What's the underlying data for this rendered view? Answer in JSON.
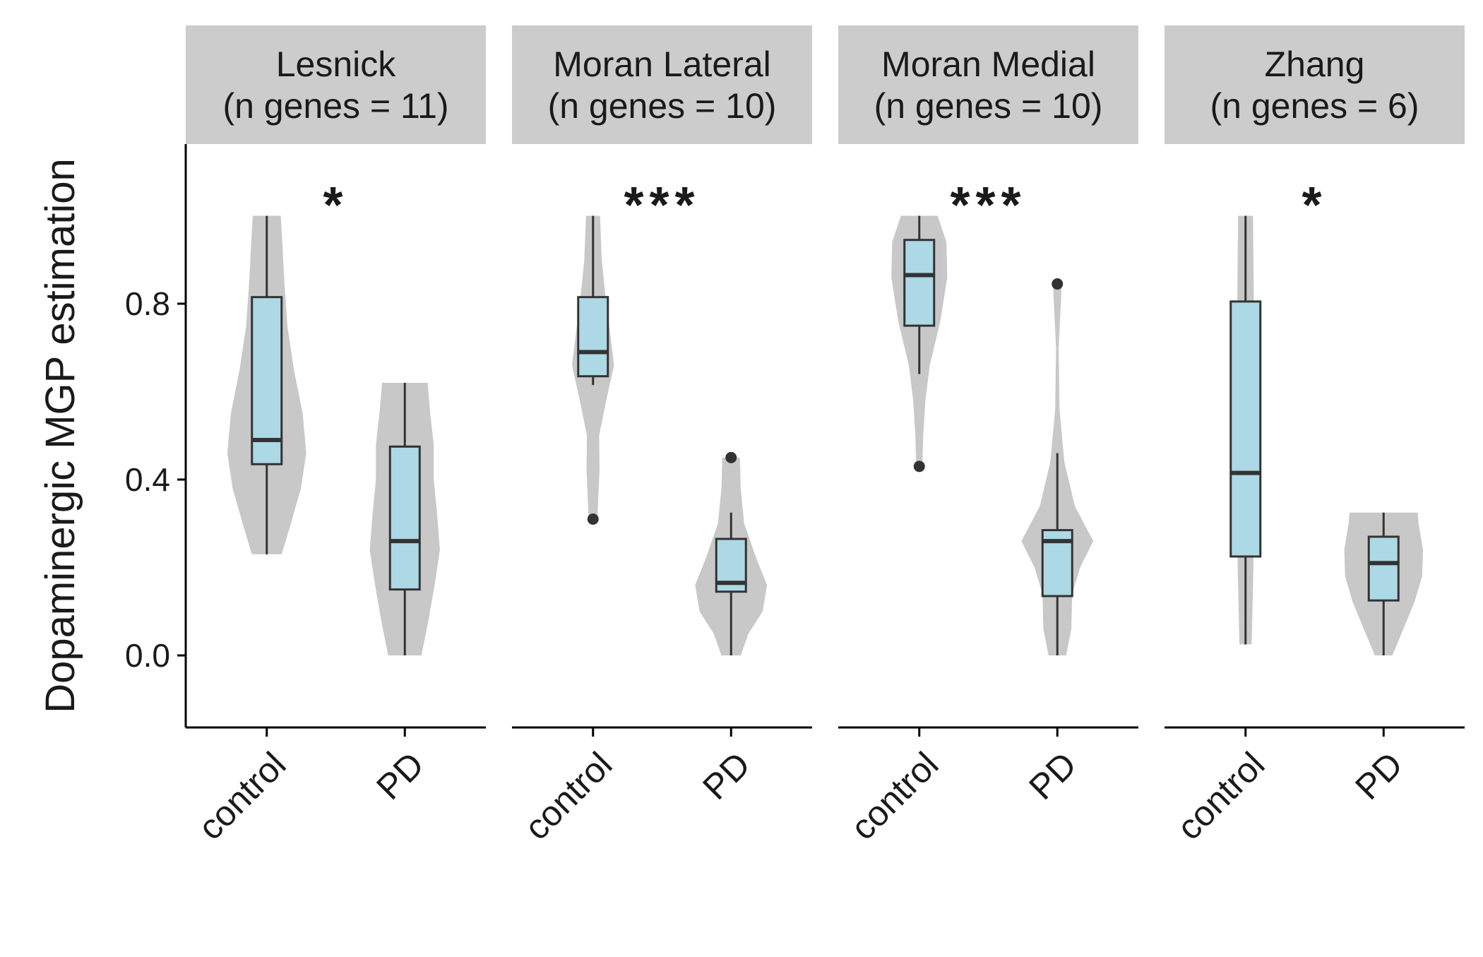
{
  "chart_data": {
    "type": "violin",
    "ylabel": "Dopaminergic MGP estimation",
    "xlabel": "",
    "ylim": [
      -0.16,
      1.15
    ],
    "y_ticks": [
      0.0,
      0.4,
      0.8
    ],
    "y_tick_labels": [
      "0.0",
      "0.4",
      "0.8"
    ],
    "categories": [
      "control",
      "PD"
    ],
    "grid": false,
    "colors": {
      "violin": "#c8c8c8",
      "box": "#add8e6",
      "line": "#333333",
      "strip": "#cccccc"
    },
    "panels": [
      {
        "title": "Lesnick",
        "subtitle": "(n genes = 11)",
        "significance": "*",
        "groups": [
          {
            "name": "control",
            "min": 0.23,
            "q1": 0.435,
            "median": 0.49,
            "q3": 0.815,
            "max": 1.0,
            "outliers": [],
            "density": [
              [
                0.23,
                0.34
              ],
              [
                0.3,
                0.55
              ],
              [
                0.38,
                0.78
              ],
              [
                0.46,
                0.9
              ],
              [
                0.55,
                0.82
              ],
              [
                0.65,
                0.62
              ],
              [
                0.75,
                0.47
              ],
              [
                0.85,
                0.4
              ],
              [
                0.93,
                0.36
              ],
              [
                1.0,
                0.32
              ]
            ]
          },
          {
            "name": "PD",
            "min": 0.0,
            "q1": 0.15,
            "median": 0.26,
            "q3": 0.475,
            "max": 0.62,
            "outliers": [],
            "density": [
              [
                0.0,
                0.38
              ],
              [
                0.08,
                0.54
              ],
              [
                0.16,
                0.68
              ],
              [
                0.24,
                0.8
              ],
              [
                0.32,
                0.74
              ],
              [
                0.4,
                0.66
              ],
              [
                0.48,
                0.66
              ],
              [
                0.55,
                0.58
              ],
              [
                0.62,
                0.52
              ]
            ]
          }
        ]
      },
      {
        "title": "Moran Lateral",
        "subtitle": "(n genes = 10)",
        "significance": "***",
        "groups": [
          {
            "name": "control",
            "min": 0.615,
            "q1": 0.635,
            "median": 0.69,
            "q3": 0.815,
            "max": 1.0,
            "outliers": [
              0.31
            ],
            "density": [
              [
                0.31,
                0.1
              ],
              [
                0.36,
                0.12
              ],
              [
                0.42,
                0.15
              ],
              [
                0.5,
                0.14
              ],
              [
                0.58,
                0.3
              ],
              [
                0.66,
                0.48
              ],
              [
                0.74,
                0.38
              ],
              [
                0.82,
                0.28
              ],
              [
                0.9,
                0.2
              ],
              [
                1.0,
                0.16
              ]
            ]
          },
          {
            "name": "PD",
            "min": 0.0,
            "q1": 0.145,
            "median": 0.165,
            "q3": 0.265,
            "max": 0.325,
            "outliers": [
              0.45
            ],
            "density": [
              [
                0.0,
                0.22
              ],
              [
                0.05,
                0.4
              ],
              [
                0.1,
                0.72
              ],
              [
                0.16,
                0.82
              ],
              [
                0.22,
                0.58
              ],
              [
                0.3,
                0.3
              ],
              [
                0.38,
                0.22
              ],
              [
                0.45,
                0.2
              ]
            ]
          }
        ]
      },
      {
        "title": "Moran Medial",
        "subtitle": "(n genes = 10)",
        "significance": "***",
        "groups": [
          {
            "name": "control",
            "min": 0.64,
            "q1": 0.75,
            "median": 0.865,
            "q3": 0.945,
            "max": 1.0,
            "outliers": [
              0.43
            ],
            "density": [
              [
                0.43,
                0.07
              ],
              [
                0.5,
                0.09
              ],
              [
                0.58,
                0.14
              ],
              [
                0.66,
                0.24
              ],
              [
                0.76,
                0.48
              ],
              [
                0.86,
                0.64
              ],
              [
                0.94,
                0.62
              ],
              [
                1.0,
                0.42
              ]
            ]
          },
          {
            "name": "PD",
            "min": 0.0,
            "q1": 0.135,
            "median": 0.26,
            "q3": 0.285,
            "max": 0.46,
            "outliers": [
              0.845
            ],
            "density": [
              [
                0.0,
                0.2
              ],
              [
                0.06,
                0.32
              ],
              [
                0.14,
                0.34
              ],
              [
                0.2,
                0.52
              ],
              [
                0.26,
                0.82
              ],
              [
                0.34,
                0.4
              ],
              [
                0.44,
                0.16
              ],
              [
                0.56,
                0.05
              ],
              [
                0.7,
                0.03
              ],
              [
                0.8,
                0.08
              ],
              [
                0.85,
                0.1
              ]
            ]
          }
        ]
      },
      {
        "title": "Zhang",
        "subtitle": "(n genes = 6)",
        "significance": "*",
        "groups": [
          {
            "name": "control",
            "min": 0.025,
            "q1": 0.225,
            "median": 0.415,
            "q3": 0.805,
            "max": 1.0,
            "outliers": [],
            "density": [
              [
                0.025,
                0.14
              ],
              [
                0.2,
                0.18
              ],
              [
                0.4,
                0.2
              ],
              [
                0.6,
                0.2
              ],
              [
                0.8,
                0.19
              ],
              [
                1.0,
                0.17
              ]
            ]
          },
          {
            "name": "PD",
            "min": 0.0,
            "q1": 0.125,
            "median": 0.21,
            "q3": 0.27,
            "max": 0.325,
            "outliers": [],
            "density": [
              [
                0.0,
                0.2
              ],
              [
                0.06,
                0.45
              ],
              [
                0.12,
                0.7
              ],
              [
                0.18,
                0.88
              ],
              [
                0.24,
                0.9
              ],
              [
                0.3,
                0.8
              ],
              [
                0.325,
                0.78
              ]
            ]
          }
        ]
      }
    ]
  }
}
